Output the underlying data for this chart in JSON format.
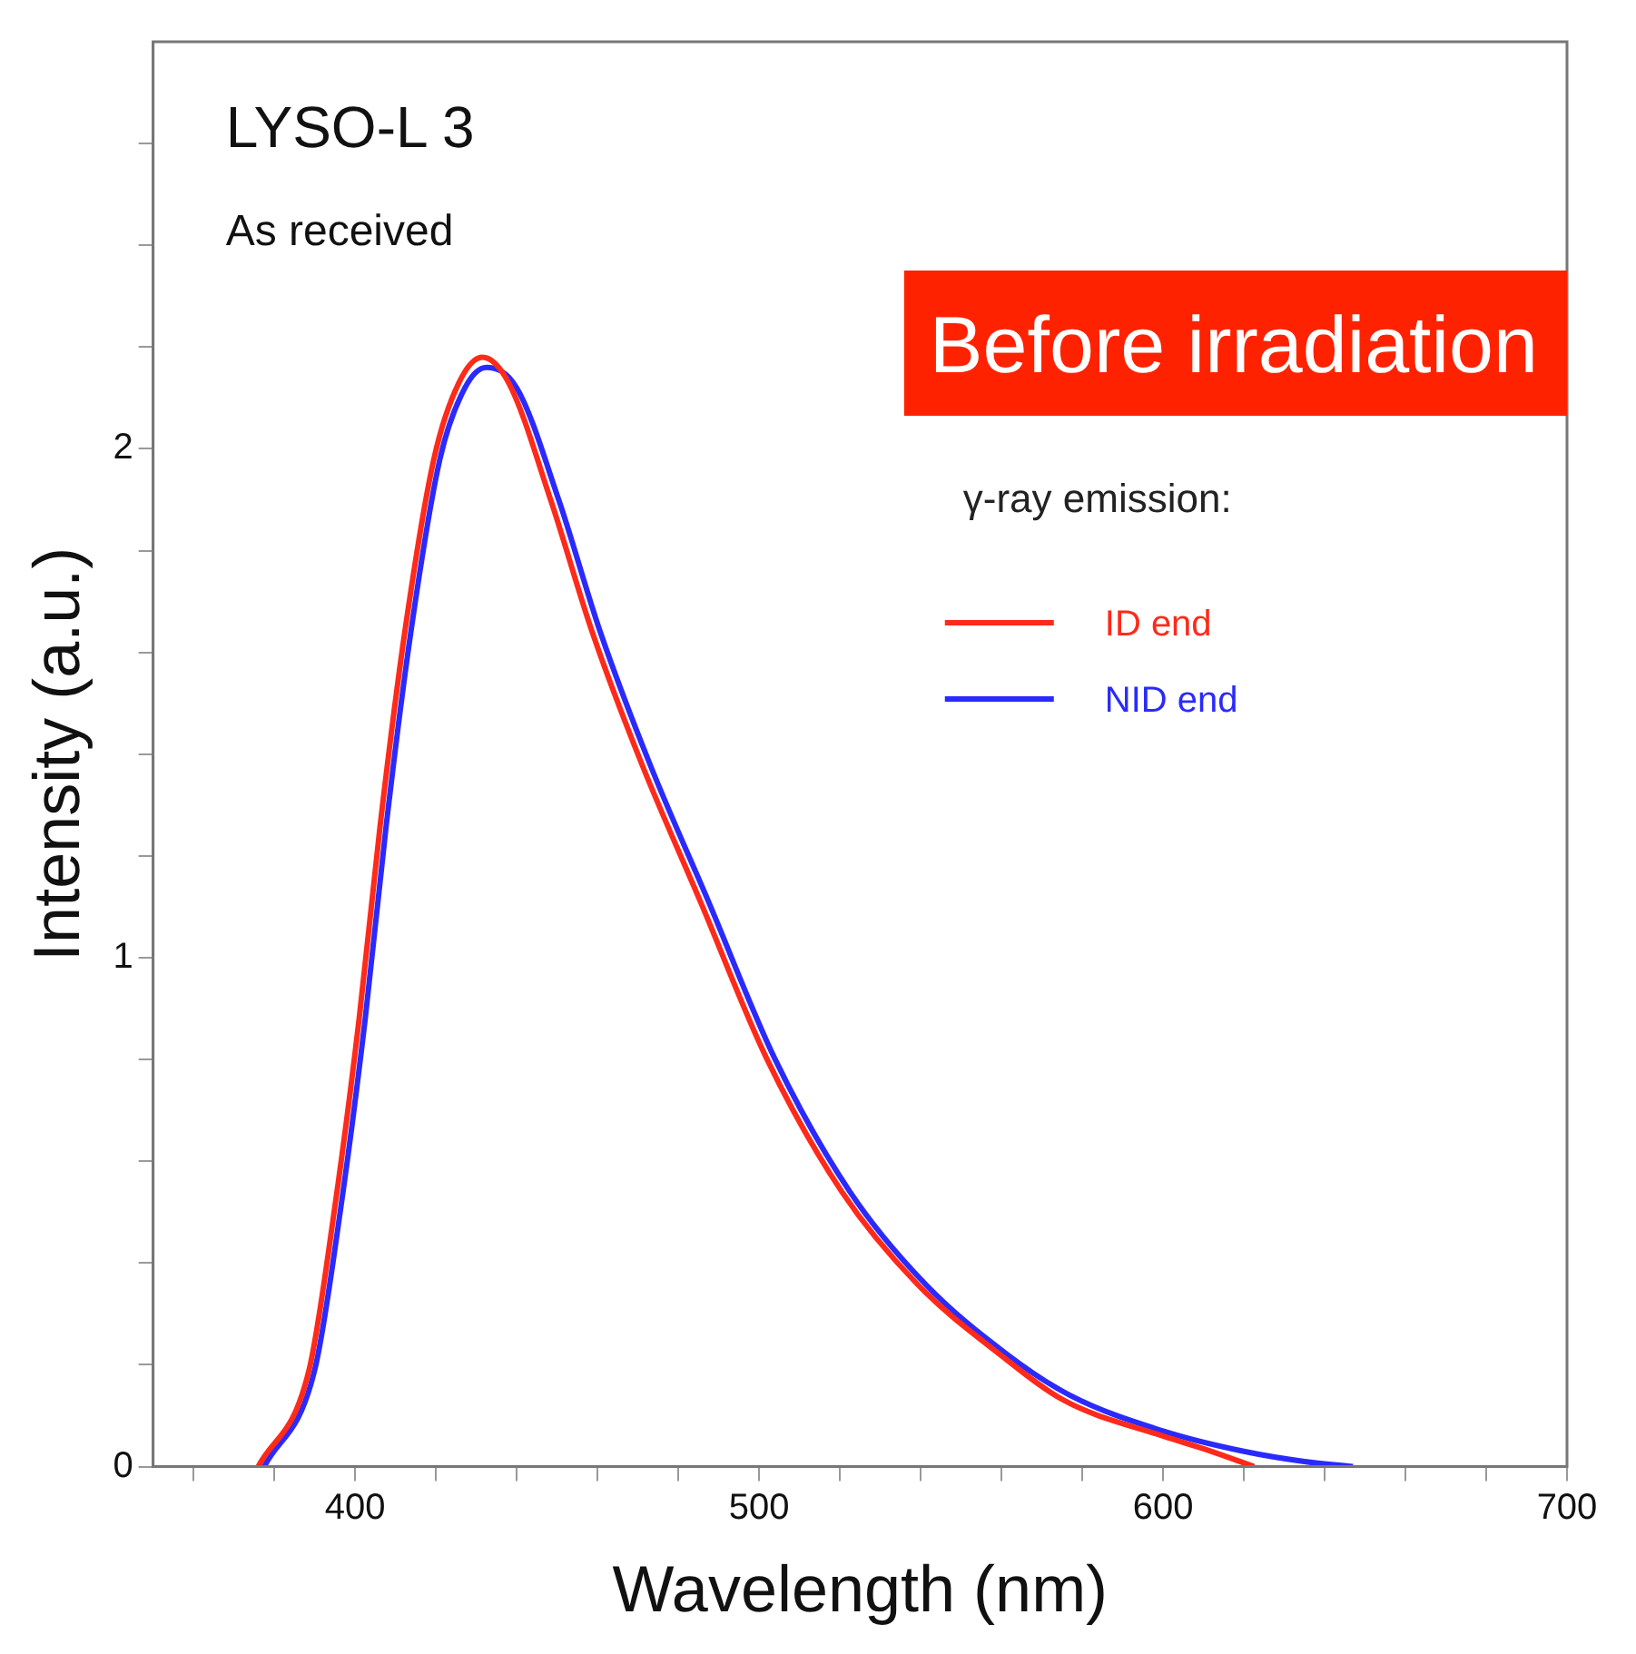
{
  "chart_data": {
    "type": "line",
    "title": "LYSO-L 3",
    "xlabel": "Wavelength (nm)",
    "ylabel": "Intensity (a.u.)",
    "legend_title": "γ-ray emission:",
    "annotations": [
      "As received",
      "Before irradiation"
    ],
    "xlim": [
      350,
      700
    ],
    "xticks": [
      {
        "value": 360,
        "label": null
      },
      {
        "value": 380,
        "label": null
      },
      400,
      {
        "value": 420,
        "label": null
      },
      {
        "value": 440,
        "label": null
      },
      {
        "value": 460,
        "label": null
      },
      {
        "value": 480,
        "label": null
      },
      500,
      {
        "value": 520,
        "label": null
      },
      {
        "value": 540,
        "label": null
      },
      {
        "value": 560,
        "label": null
      },
      {
        "value": 580,
        "label": null
      },
      600,
      {
        "value": 620,
        "label": null
      },
      {
        "value": 640,
        "label": null
      },
      {
        "value": 660,
        "label": null
      },
      {
        "value": 680,
        "label": null
      },
      700
    ],
    "ylim": [
      0,
      2.8
    ],
    "yticks": [
      0,
      {
        "value": 0.2,
        "label": null
      },
      {
        "value": 0.4,
        "label": null
      },
      {
        "value": 0.6,
        "label": null
      },
      {
        "value": 0.8,
        "label": null
      },
      1,
      {
        "value": 1.2,
        "label": null
      },
      {
        "value": 1.4,
        "label": null
      },
      {
        "value": 1.6,
        "label": null
      },
      {
        "value": 1.8,
        "label": null
      },
      2,
      {
        "value": 2.2,
        "label": null
      },
      {
        "value": 2.4,
        "label": null
      },
      {
        "value": 2.6,
        "label": null
      }
    ],
    "grid": false,
    "legend": "right",
    "marker": "none",
    "line_style": "solid",
    "series": [
      {
        "name": "ID end",
        "color": "#ff2a1a",
        "x": [
          376,
          388.6,
          394.8,
          401,
          406.2,
          412.3,
          419.5,
          425.7,
          431.5,
          438,
          448.4,
          458.7,
          471,
          485.5,
          502,
          520.5,
          539,
          559.7,
          575.5,
          600,
          612,
          622.5
        ],
        "values": [
          0,
          0.19,
          0.5,
          0.88,
          1.26,
          1.64,
          1.98,
          2.13,
          2.18,
          2.13,
          1.9,
          1.64,
          1.38,
          1.11,
          0.8,
          0.54,
          0.36,
          0.22,
          0.13,
          0.06,
          0.03,
          0
        ]
      },
      {
        "name": "NID end",
        "color": "#2a2aff",
        "x": [
          377.5,
          390,
          396.3,
          402.5,
          407.7,
          413.8,
          421,
          427.2,
          432.5,
          440,
          450.4,
          460.7,
          473,
          487.5,
          504,
          522.5,
          541,
          561.5,
          577,
          600,
          620,
          635,
          647
        ],
        "values": [
          0,
          0.19,
          0.5,
          0.88,
          1.26,
          1.64,
          1.98,
          2.12,
          2.16,
          2.12,
          1.9,
          1.64,
          1.38,
          1.11,
          0.8,
          0.54,
          0.36,
          0.22,
          0.14,
          0.07,
          0.03,
          0.01,
          0
        ]
      }
    ]
  }
}
